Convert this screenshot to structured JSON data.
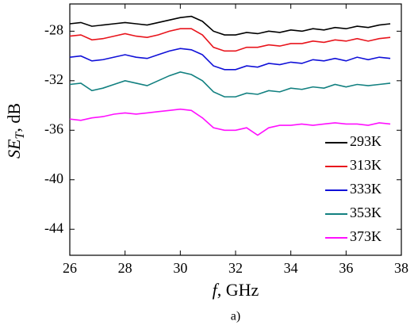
{
  "chart_data": {
    "type": "line",
    "ylabel": {
      "main": "SE",
      "sub": "T",
      "unit": ", dB"
    },
    "xlabel": {
      "var": "f",
      "unit": ", GHz"
    },
    "caption": "a)",
    "xlim": [
      26,
      38
    ],
    "xticks": [
      26,
      28,
      30,
      32,
      34,
      36,
      38
    ],
    "ylim": [
      -46.1,
      -25.8
    ],
    "yticks": [
      -28,
      -32,
      -36,
      -40,
      -44
    ],
    "x": [
      26,
      26.4,
      26.8,
      27.2,
      27.6,
      28,
      28.4,
      28.8,
      29.2,
      29.6,
      30,
      30.4,
      30.8,
      31.2,
      31.6,
      32,
      32.4,
      32.8,
      33.2,
      33.6,
      34,
      34.4,
      34.8,
      35.2,
      35.6,
      36,
      36.4,
      36.8,
      37.2,
      37.6
    ],
    "legend": "lower right",
    "series": [
      {
        "name": "293K",
        "color": "#000000",
        "values": [
          -27.4,
          -27.3,
          -27.6,
          -27.5,
          -27.4,
          -27.3,
          -27.4,
          -27.5,
          -27.3,
          -27.1,
          -26.9,
          -26.8,
          -27.2,
          -28.0,
          -28.3,
          -28.3,
          -28.1,
          -28.2,
          -28.0,
          -28.1,
          -27.9,
          -28.0,
          -27.8,
          -27.9,
          -27.7,
          -27.8,
          -27.6,
          -27.7,
          -27.5,
          -27.4
        ]
      },
      {
        "name": "313K",
        "color": "#e8141c",
        "values": [
          -28.4,
          -28.3,
          -28.7,
          -28.6,
          -28.4,
          -28.2,
          -28.4,
          -28.5,
          -28.3,
          -28.0,
          -27.8,
          -27.8,
          -28.3,
          -29.3,
          -29.6,
          -29.6,
          -29.3,
          -29.3,
          -29.1,
          -29.2,
          -29.0,
          -29.0,
          -28.8,
          -28.9,
          -28.7,
          -28.8,
          -28.6,
          -28.8,
          -28.6,
          -28.5
        ]
      },
      {
        "name": "333K",
        "color": "#1010d8",
        "values": [
          -30.1,
          -30.0,
          -30.4,
          -30.3,
          -30.1,
          -29.9,
          -30.1,
          -30.2,
          -29.9,
          -29.6,
          -29.4,
          -29.5,
          -29.9,
          -30.8,
          -31.1,
          -31.1,
          -30.8,
          -30.9,
          -30.6,
          -30.7,
          -30.5,
          -30.6,
          -30.3,
          -30.4,
          -30.2,
          -30.4,
          -30.1,
          -30.3,
          -30.1,
          -30.2
        ]
      },
      {
        "name": "353K",
        "color": "#128080",
        "values": [
          -32.3,
          -32.2,
          -32.8,
          -32.6,
          -32.3,
          -32.0,
          -32.2,
          -32.4,
          -32.0,
          -31.6,
          -31.3,
          -31.5,
          -32.0,
          -32.9,
          -33.3,
          -33.3,
          -33.0,
          -33.1,
          -32.8,
          -32.9,
          -32.6,
          -32.7,
          -32.5,
          -32.6,
          -32.3,
          -32.5,
          -32.3,
          -32.4,
          -32.3,
          -32.2
        ]
      },
      {
        "name": "373K",
        "color": "#ff10ff",
        "values": [
          -35.1,
          -35.2,
          -35.0,
          -34.9,
          -34.7,
          -34.6,
          -34.7,
          -34.6,
          -34.5,
          -34.4,
          -34.3,
          -34.4,
          -35.0,
          -35.8,
          -36.0,
          -36.0,
          -35.8,
          -36.4,
          -35.8,
          -35.6,
          -35.6,
          -35.5,
          -35.6,
          -35.5,
          -35.4,
          -35.5,
          -35.5,
          -35.6,
          -35.4,
          -35.5
        ]
      }
    ]
  }
}
